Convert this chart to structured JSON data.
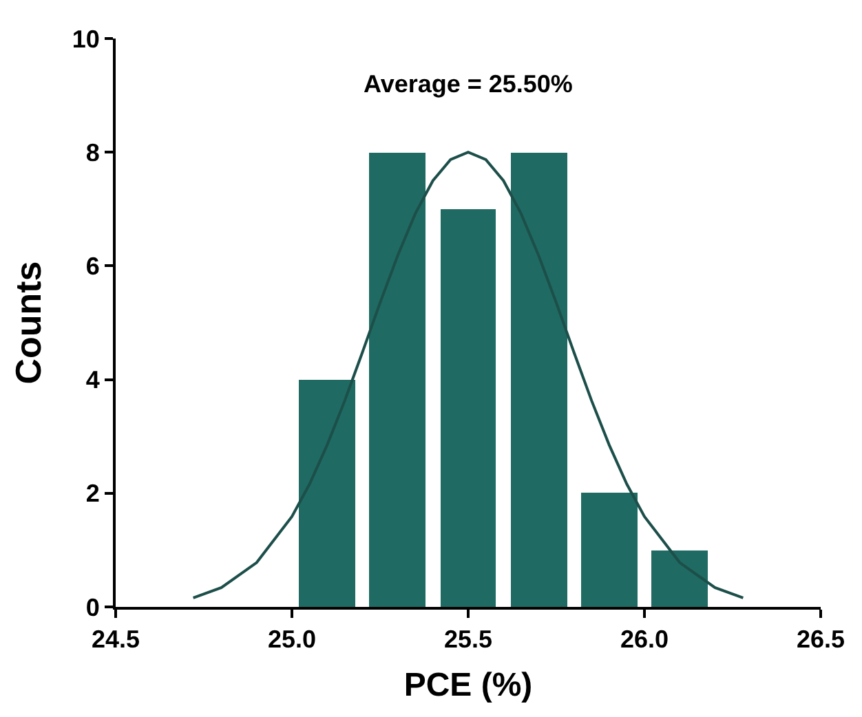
{
  "chart_data": {
    "type": "histogram",
    "xlabel": "PCE (%)",
    "ylabel": "Counts",
    "annotations": [
      "Average = 25.50%"
    ],
    "bins": [
      25.0,
      25.2,
      25.4,
      25.6,
      25.8,
      26.0,
      26.2
    ],
    "values": [
      4,
      8,
      7,
      8,
      2,
      1
    ],
    "color": "#1f6b63",
    "series": [
      {
        "type": "line",
        "color": "#1d4f4a",
        "line_style": "solid",
        "marker": "none",
        "x": [
          24.72,
          24.8,
          24.9,
          25.0,
          25.05,
          25.1,
          25.15,
          25.2,
          25.25,
          25.3,
          25.35,
          25.4,
          25.45,
          25.5,
          25.55,
          25.6,
          25.65,
          25.7,
          25.75,
          25.8,
          25.85,
          25.9,
          25.95,
          26.0,
          26.1,
          26.2,
          26.28
        ],
        "values": [
          0.16,
          0.34,
          0.78,
          1.59,
          2.16,
          2.85,
          3.63,
          4.48,
          5.35,
          6.18,
          6.92,
          7.5,
          7.87,
          8.0,
          7.87,
          7.5,
          6.92,
          6.18,
          5.35,
          4.48,
          3.63,
          2.85,
          2.16,
          1.59,
          0.78,
          0.34,
          0.16
        ]
      }
    ],
    "xlim": [
      24.5,
      26.5
    ],
    "xticks": [
      24.5,
      {
        "value": 25,
        "label": "25.0"
      },
      25.5,
      {
        "value": 26,
        "label": "26.0"
      },
      26.5
    ],
    "ylim": [
      0,
      10
    ],
    "yticks": [
      0,
      2,
      4,
      6,
      8,
      10
    ]
  }
}
